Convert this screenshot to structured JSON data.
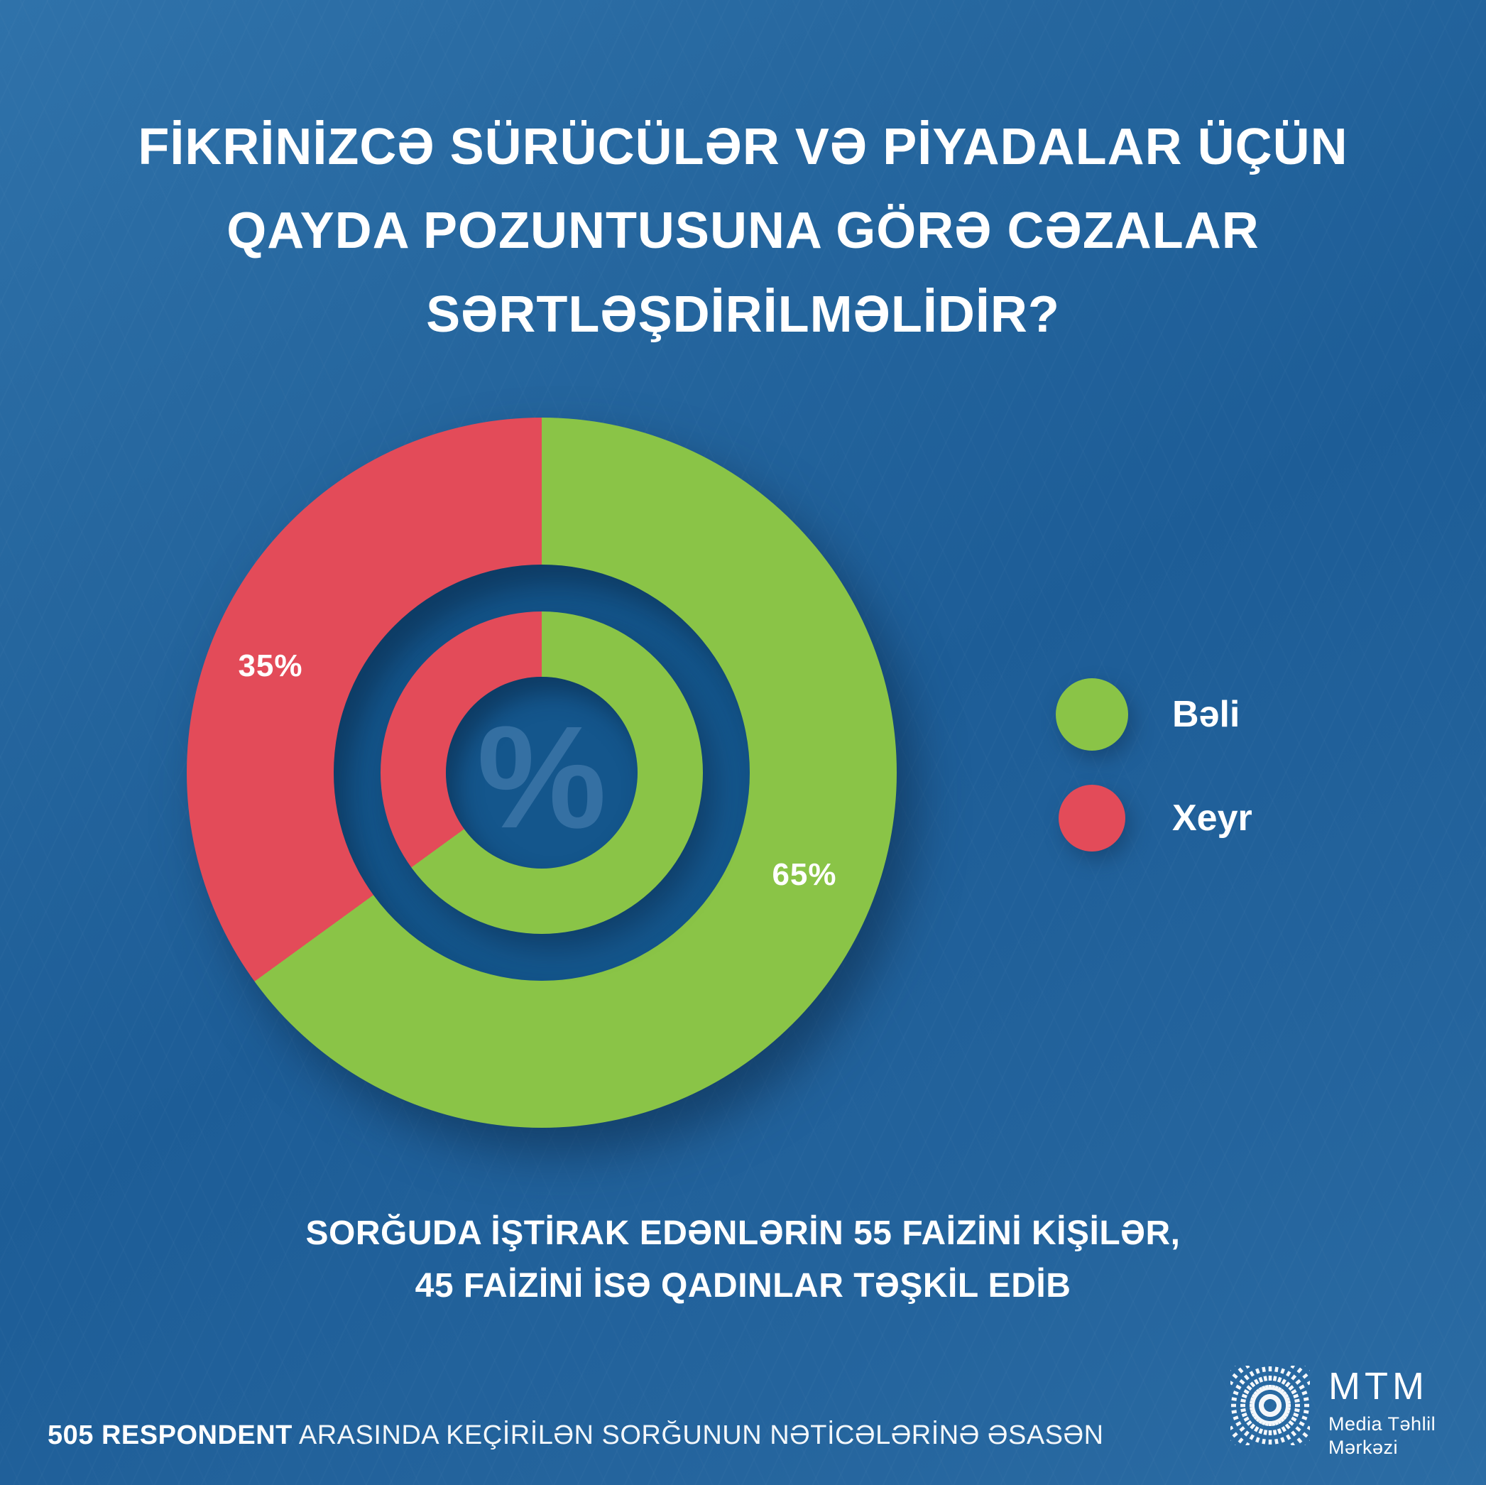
{
  "title": {
    "lines": [
      "FİKRİNİZCƏ SÜRÜCÜLƏR VƏ PİYADALAR ÜÇÜN",
      "QAYDA POZUNTUSUNA GÖRƏ CƏZALAR",
      "SƏRTLƏŞDİRİLMƏLİDİR?"
    ]
  },
  "chart_data": {
    "type": "pie",
    "variant": "double-donut",
    "categories": [
      "Bəli",
      "Xeyr"
    ],
    "values": [
      65,
      35
    ],
    "labels": [
      "65%",
      "35%"
    ],
    "colors": [
      "#8ac447",
      "#e34b59"
    ],
    "center_symbol": "%",
    "start_angle_deg": 0,
    "direction": "clockwise",
    "legend_position": "right",
    "title": "FİKRİNİZCƏ SÜRÜCÜLƏR VƏ PİYADALAR ÜÇÜN QAYDA POZUNTUSUNA GÖRƏ CƏZALAR SƏRTLƏŞDİRİLMƏLİDİR?"
  },
  "subtitle": {
    "lines": [
      "SORĞUDA İŞTİRAK EDƏNLƏRİN 55 FAİZİNİ KİŞİLƏR,",
      "45 FAİZİNİ İSƏ QADINLAR TƏŞKİL EDİB"
    ]
  },
  "footer": {
    "bold": "505 RESPONDENT",
    "rest": "ARASINDA KEÇİRİLƏN SORĞUNUN NƏTİCƏLƏRİNƏ ƏSASƏN"
  },
  "brand": {
    "name": "MTM",
    "line1": "Media Təhlil",
    "line2": "Mərkəzi"
  },
  "colors": {
    "background": "#215f99",
    "donut_hole_blue": "#14568c",
    "text": "#ffffff"
  }
}
